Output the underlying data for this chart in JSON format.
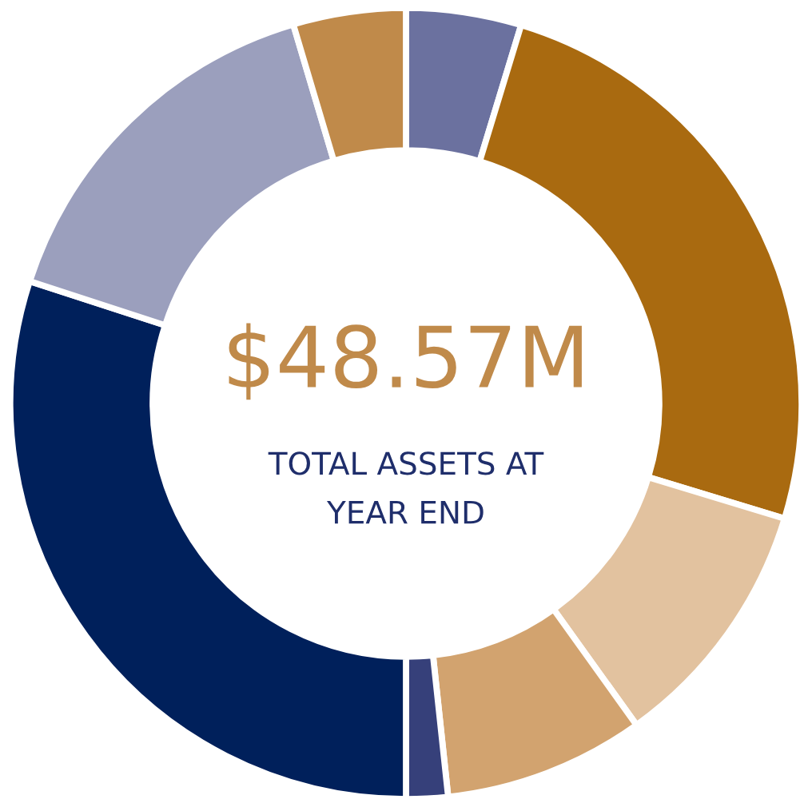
{
  "chart_data": {
    "type": "donut",
    "title": "$48.57M",
    "subtitle": "TOTAL ASSETS AT\nYEAR END",
    "categories": [
      null,
      null,
      null,
      null,
      null,
      null,
      null,
      null
    ],
    "values": [
      4.7,
      25,
      10.4,
      8.2,
      1.7,
      30,
      15.4,
      4.6
    ],
    "colors": [
      "#6b719f",
      "#a96a10",
      "#e2c29f",
      "#d2a36f",
      "#36407a",
      "#00205b",
      "#9b9fbd",
      "#c08a4a"
    ],
    "legend": false
  }
}
